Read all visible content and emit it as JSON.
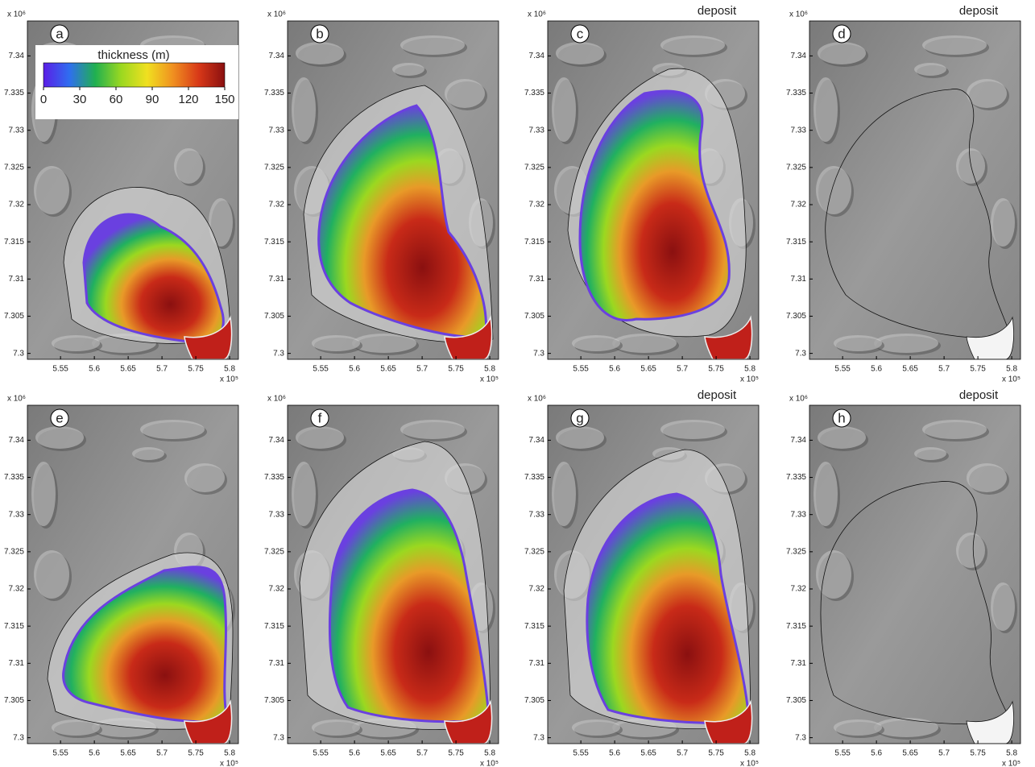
{
  "chart_data": [
    {
      "type": "map",
      "title": "a",
      "xlim": [
        5.501,
        5.813
      ],
      "ylim": [
        7.2992,
        7.3447
      ],
      "xticks": [
        5.55,
        5.6,
        5.65,
        5.7,
        5.75,
        5.8
      ],
      "yticks": [
        7.3,
        7.305,
        7.31,
        7.315,
        7.32,
        7.325,
        7.33,
        7.335,
        7.34
      ],
      "x_multiplier": "x 10⁵",
      "y_multiplier": "x 10⁶",
      "colorbar": {
        "label": "thickness (m)",
        "lim": [
          0,
          150
        ],
        "ticks": [
          0,
          30,
          60,
          90,
          120,
          150
        ],
        "colors": [
          "#5a1ee6",
          "#2f6ef0",
          "#20b050",
          "#9bd820",
          "#f0e020",
          "#f09020",
          "#d83818",
          "#8a1010"
        ]
      }
    },
    {
      "type": "map",
      "title": "b",
      "xlim": [
        5.501,
        5.813
      ],
      "ylim": [
        7.2992,
        7.3447
      ],
      "xticks": [
        5.55,
        5.6,
        5.65,
        5.7,
        5.75,
        5.8
      ],
      "yticks": [
        7.3,
        7.305,
        7.31,
        7.315,
        7.32,
        7.325,
        7.33,
        7.335,
        7.34
      ],
      "x_multiplier": "x 10⁵",
      "y_multiplier": "x 10⁶"
    },
    {
      "type": "map",
      "title": "c",
      "subtitle": "deposit",
      "xlim": [
        5.501,
        5.813
      ],
      "ylim": [
        7.2992,
        7.3447
      ],
      "xticks": [
        5.55,
        5.6,
        5.65,
        5.7,
        5.75,
        5.8
      ],
      "yticks": [
        7.3,
        7.305,
        7.31,
        7.315,
        7.32,
        7.325,
        7.33,
        7.335,
        7.34
      ],
      "x_multiplier": "x 10⁵",
      "y_multiplier": "x 10⁶"
    },
    {
      "type": "map",
      "title": "d",
      "subtitle": "deposit",
      "xlim": [
        5.501,
        5.813
      ],
      "ylim": [
        7.2992,
        7.3447
      ],
      "xticks": [
        5.55,
        5.6,
        5.65,
        5.7,
        5.75,
        5.8
      ],
      "yticks": [
        7.3,
        7.305,
        7.31,
        7.315,
        7.32,
        7.325,
        7.33,
        7.335,
        7.34
      ],
      "x_multiplier": "x 10⁵",
      "y_multiplier": "x 10⁶"
    },
    {
      "type": "map",
      "title": "e",
      "xlim": [
        5.501,
        5.813
      ],
      "ylim": [
        7.2992,
        7.3447
      ],
      "xticks": [
        5.55,
        5.6,
        5.65,
        5.7,
        5.75,
        5.8
      ],
      "yticks": [
        7.3,
        7.305,
        7.31,
        7.315,
        7.32,
        7.325,
        7.33,
        7.335,
        7.34
      ],
      "x_multiplier": "x 10⁵",
      "y_multiplier": "x 10⁶"
    },
    {
      "type": "map",
      "title": "f",
      "xlim": [
        5.501,
        5.813
      ],
      "ylim": [
        7.2992,
        7.3447
      ],
      "xticks": [
        5.55,
        5.6,
        5.65,
        5.7,
        5.75,
        5.8
      ],
      "yticks": [
        7.3,
        7.305,
        7.31,
        7.315,
        7.32,
        7.325,
        7.33,
        7.335,
        7.34
      ],
      "x_multiplier": "x 10⁵",
      "y_multiplier": "x 10⁶"
    },
    {
      "type": "map",
      "title": "g",
      "subtitle": "deposit",
      "xlim": [
        5.501,
        5.813
      ],
      "ylim": [
        7.2992,
        7.3447
      ],
      "xticks": [
        5.55,
        5.6,
        5.65,
        5.7,
        5.75,
        5.8
      ],
      "yticks": [
        7.3,
        7.305,
        7.31,
        7.315,
        7.32,
        7.325,
        7.33,
        7.335,
        7.34
      ],
      "x_multiplier": "x 10⁵",
      "y_multiplier": "x 10⁶"
    },
    {
      "type": "map",
      "title": "h",
      "subtitle": "deposit",
      "xlim": [
        5.501,
        5.813
      ],
      "ylim": [
        7.2992,
        7.3447
      ],
      "xticks": [
        5.55,
        5.6,
        5.65,
        5.7,
        5.75,
        5.8
      ],
      "yticks": [
        7.3,
        7.305,
        7.31,
        7.315,
        7.32,
        7.325,
        7.33,
        7.335,
        7.34
      ],
      "x_multiplier": "x 10⁵",
      "y_multiplier": "x 10⁶"
    }
  ]
}
